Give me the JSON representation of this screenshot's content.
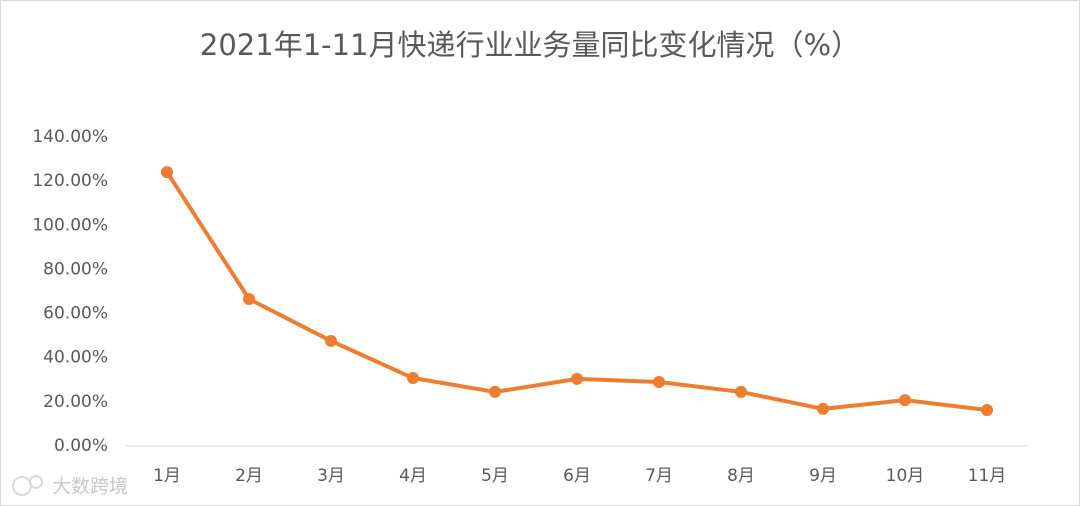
{
  "chart_data": {
    "type": "line",
    "title": "2021年1-11月快递行业业务量同比变化情况（%）",
    "categories": [
      "1月",
      "2月",
      "3月",
      "4月",
      "5月",
      "6月",
      "7月",
      "8月",
      "9月",
      "10月",
      "11月"
    ],
    "values": [
      124.1,
      66.6,
      47.6,
      30.8,
      24.5,
      30.4,
      29.0,
      24.5,
      16.8,
      20.8,
      16.3
    ],
    "color": "#ed7d31",
    "ylim": [
      0,
      140
    ],
    "yticks": [
      {
        "value": 0,
        "label": "0.00%"
      },
      {
        "value": 20,
        "label": "20.00%"
      },
      {
        "value": 40,
        "label": "40.00%"
      },
      {
        "value": 60,
        "label": "60.00%"
      },
      {
        "value": 80,
        "label": "80.00%"
      },
      {
        "value": 100,
        "label": "100.00%"
      },
      {
        "value": 120,
        "label": "120.00%"
      },
      {
        "value": 140,
        "label": "140.00%"
      }
    ],
    "grid": false
  },
  "watermark": "大数跨境"
}
